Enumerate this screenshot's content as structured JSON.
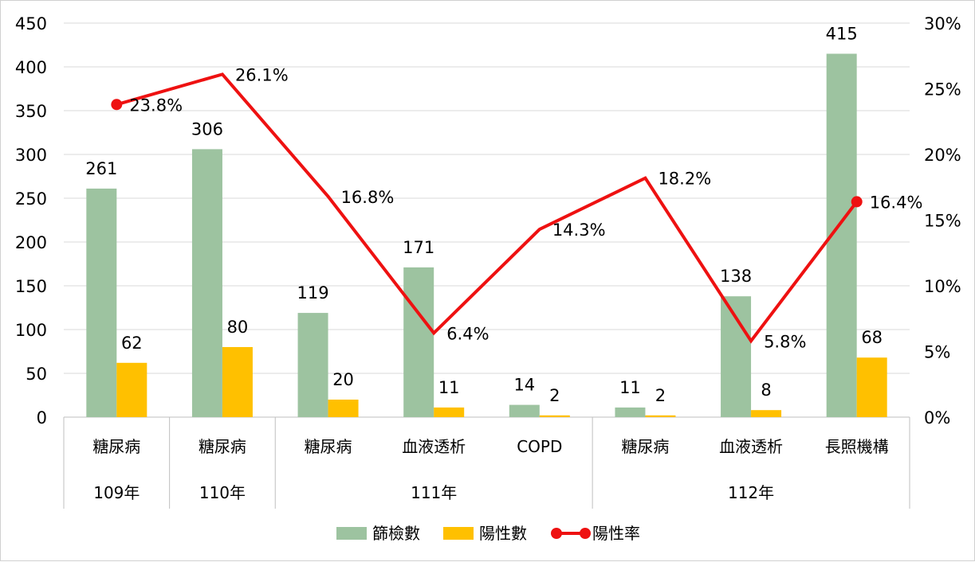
{
  "chart_data": {
    "type": "bar",
    "title": "",
    "groups": [
      {
        "label": "109年",
        "categories": [
          "糖尿病"
        ]
      },
      {
        "label": "110年",
        "categories": [
          "糖尿病"
        ]
      },
      {
        "label": "111年",
        "categories": [
          "糖尿病",
          "血液透析",
          "COPD"
        ]
      },
      {
        "label": "112年",
        "categories": [
          "糖尿病",
          "血液透析",
          "長照機構"
        ]
      }
    ],
    "categories": [
      "糖尿病",
      "糖尿病",
      "糖尿病",
      "血液透析",
      "COPD",
      "糖尿病",
      "血液透析",
      "長照機構"
    ],
    "series": [
      {
        "name": "篩檢數",
        "type": "bar",
        "axis": "left",
        "color": "#9dc3a0",
        "values": [
          261,
          306,
          119,
          171,
          14,
          11,
          138,
          415
        ]
      },
      {
        "name": "陽性數",
        "type": "bar",
        "axis": "left",
        "color": "#ffc000",
        "values": [
          62,
          80,
          20,
          11,
          2,
          2,
          8,
          68
        ]
      },
      {
        "name": "陽性率",
        "type": "line",
        "axis": "right",
        "color": "#ee1111",
        "values": [
          23.8,
          26.1,
          16.8,
          6.4,
          14.3,
          18.2,
          5.8,
          16.4
        ],
        "labels": [
          "23.8%",
          "26.1%",
          "16.8%",
          "6.4%",
          "14.3%",
          "18.2%",
          "5.8%",
          "16.4%"
        ],
        "markers": [
          true,
          false,
          false,
          false,
          false,
          false,
          false,
          true
        ]
      }
    ],
    "y_left": {
      "ylim": [
        0,
        450
      ],
      "ticks": [
        "0",
        "50",
        "100",
        "150",
        "200",
        "250",
        "300",
        "350",
        "400",
        "450"
      ]
    },
    "y_right": {
      "ylim": [
        0,
        30
      ],
      "ticks": [
        "0%",
        "5%",
        "10%",
        "15%",
        "20%",
        "25%",
        "30%"
      ]
    },
    "grid": true,
    "legend": {
      "position": "bottom",
      "items": [
        "篩檢數",
        "陽性數",
        "陽性率"
      ]
    }
  }
}
